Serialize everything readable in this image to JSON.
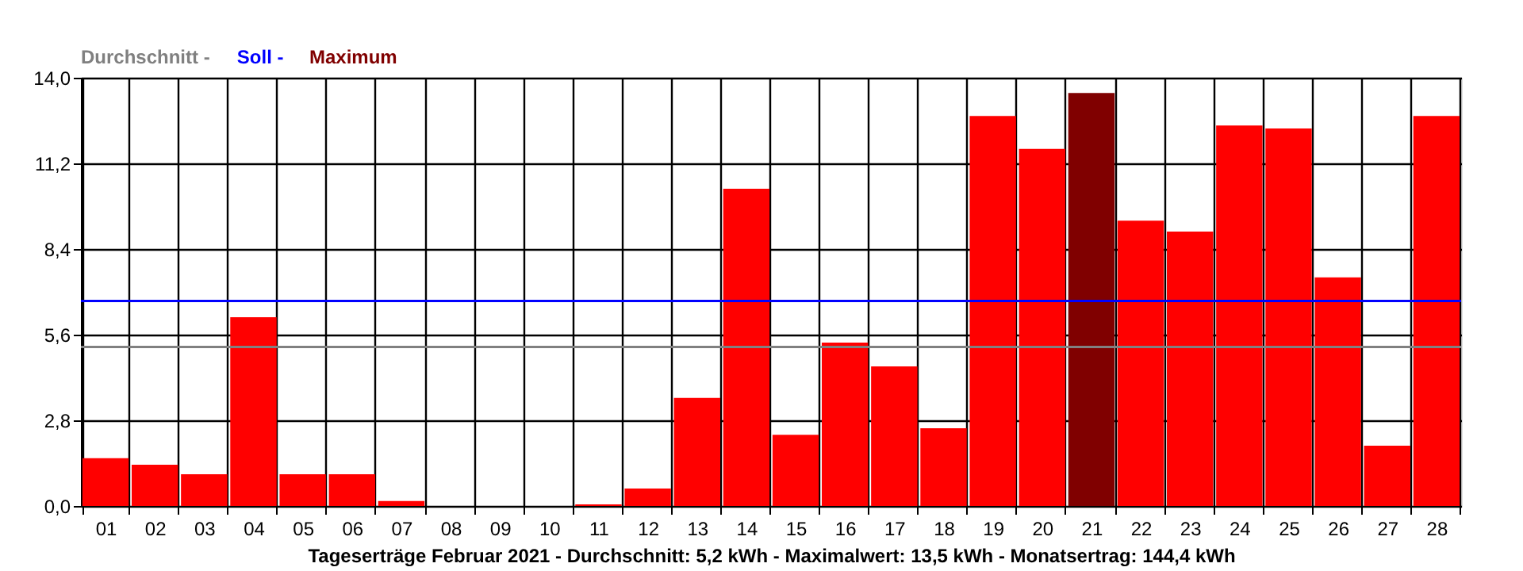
{
  "chart_data": {
    "type": "bar",
    "xlabel": "Tageserträge Februar 2021 - Durchschnitt: 5,2 kWh - Maximalwert: 13,5 kWh - Monatsertrag: 144,4 kWh",
    "categories": [
      "01",
      "02",
      "03",
      "04",
      "05",
      "06",
      "07",
      "08",
      "09",
      "10",
      "11",
      "12",
      "13",
      "14",
      "15",
      "16",
      "17",
      "18",
      "19",
      "20",
      "21",
      "22",
      "23",
      "24",
      "25",
      "26",
      "27",
      "28"
    ],
    "values": [
      1.56,
      1.35,
      1.04,
      6.17,
      1.04,
      1.04,
      0.16,
      0,
      0,
      0,
      0.05,
      0.57,
      3.53,
      10.37,
      2.33,
      5.34,
      4.56,
      2.54,
      12.75,
      11.67,
      13.5,
      9.33,
      8.97,
      12.44,
      12.34,
      7.47,
      1.97,
      12.75
    ],
    "colors": [
      "#ff0000",
      "#ff0000",
      "#ff0000",
      "#ff0000",
      "#ff0000",
      "#ff0000",
      "#ff0000",
      "#ff0000",
      "#ff0000",
      "#ff0000",
      "#ff0000",
      "#ff0000",
      "#ff0000",
      "#ff0000",
      "#ff0000",
      "#ff0000",
      "#ff0000",
      "#ff0000",
      "#ff0000",
      "#ff0000",
      "#800000",
      "#ff0000",
      "#ff0000",
      "#ff0000",
      "#ff0000",
      "#ff0000",
      "#ff0000",
      "#ff0000"
    ],
    "ylim": [
      0,
      14
    ],
    "yticks": [
      {
        "value": 0,
        "label": "0,0"
      },
      {
        "value": 2.8,
        "label": "2,8"
      },
      {
        "value": 5.6,
        "label": "5,6"
      },
      {
        "value": 8.4,
        "label": "8,4"
      },
      {
        "value": 11.2,
        "label": "11,2"
      },
      {
        "value": 14,
        "label": "14,0"
      }
    ],
    "ref_lines": [
      {
        "axis": "y",
        "value": 5.2,
        "color": "#808080"
      },
      {
        "axis": "y",
        "value": 6.7,
        "color": "#0000ff"
      }
    ],
    "annotations": [
      "Durchschnitt -",
      "Soll -",
      "Maximum"
    ],
    "grid": true
  }
}
